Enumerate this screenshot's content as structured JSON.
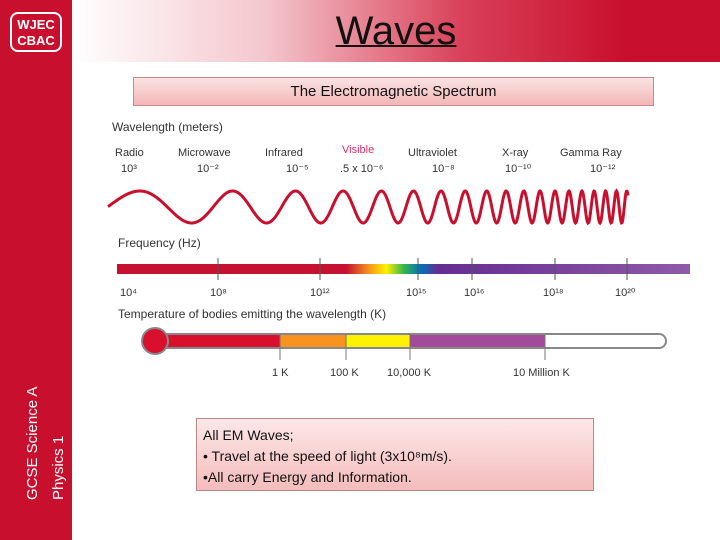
{
  "sidebar": {
    "logo_line1": "WJEC",
    "logo_line2": "CBAC",
    "line1": "GCSE Science A",
    "line2": "Physics 1"
  },
  "header": {
    "title": "Waves"
  },
  "subtitle": "The Electromagnetic Spectrum",
  "diagram": {
    "wavelength_heading": "Wavelength (meters)",
    "bands": [
      {
        "name": "Radio",
        "value": "10³"
      },
      {
        "name": "Microwave",
        "value": "10⁻²"
      },
      {
        "name": "Infrared",
        "value": "10⁻⁵"
      },
      {
        "name": "Visible",
        "value": ".5 x 10⁻⁶"
      },
      {
        "name": "Ultraviolet",
        "value": "10⁻⁸"
      },
      {
        "name": "X-ray",
        "value": "10⁻¹⁰"
      },
      {
        "name": "Gamma Ray",
        "value": "10⁻¹²"
      }
    ],
    "frequency_heading": "Frequency (Hz)",
    "frequency_ticks": [
      "10⁴",
      "10⁸",
      "10¹²",
      "10¹⁵",
      "10¹⁶",
      "10¹⁸",
      "10²⁰"
    ],
    "temperature_heading": "Temperature of bodies emitting the wavelength (K)",
    "temperature_ticks": [
      "1 K",
      "100 K",
      "10,000 K",
      "10 Million K"
    ]
  },
  "info": {
    "line1": "All EM Waves;",
    "line2": "• Travel at the speed of light (3x10⁸m/s).",
    "line3": "•All carry Energy and Information."
  },
  "colors": {
    "accent": "#c8102e",
    "visible": "#e0306a"
  }
}
